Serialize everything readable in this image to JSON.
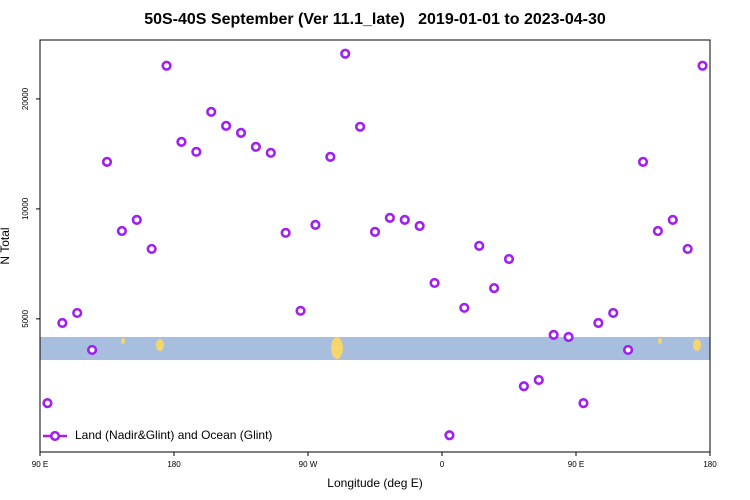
{
  "chart_data": {
    "type": "scatter",
    "title": "50S-40S September (Ver 11.1_late)   2019-01-01 to 2023-04-30",
    "x_label": "Longitude (deg E)",
    "y_label": "N Total",
    "log_y": true,
    "grid": false,
    "legend_position": "lower left",
    "xlim": [
      90,
      540
    ],
    "xticks": [
      {
        "value": 90,
        "label": "90 E"
      },
      180,
      {
        "value": 270,
        "label": "90 W"
      },
      {
        "value": 360,
        "label": "0"
      },
      {
        "value": 450,
        "label": "90 E"
      },
      {
        "value": 540,
        "label": "180"
      }
    ],
    "ylim": [
      2160,
      29000
    ],
    "yticks": [
      5000,
      10000,
      20000
    ],
    "series": [
      {
        "name": "Land (Nadir&Glint) and Ocean (Glint)",
        "color": "#a020f0",
        "x": [
          95,
          105,
          115,
          125,
          135,
          145,
          155,
          165,
          175,
          185,
          195,
          205,
          215,
          225,
          235,
          245,
          255,
          265,
          275,
          285,
          295,
          305,
          315,
          325,
          335,
          345,
          355,
          365,
          375,
          385,
          395,
          405,
          415,
          425,
          435,
          445,
          455,
          465,
          475,
          485,
          495,
          505,
          515,
          525,
          535
        ],
        "values": [
          2940,
          4870,
          5190,
          4110,
          13450,
          8700,
          9330,
          7770,
          24650,
          15260,
          14330,
          18440,
          16880,
          16150,
          14790,
          14240,
          8600,
          5260,
          9040,
          13880,
          26590,
          16780,
          8650,
          9450,
          9330,
          8980,
          6270,
          2400,
          5360,
          7920,
          6070,
          7290,
          3270,
          3400,
          4520,
          4460,
          2940,
          4870,
          5190,
          4110,
          13450,
          8700,
          9330,
          7770,
          24650
        ]
      }
    ]
  }
}
